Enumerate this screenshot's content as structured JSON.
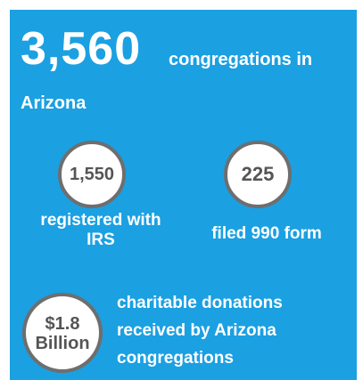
{
  "headline": {
    "number": "3,560",
    "text_line1": "congregations in",
    "text_line2": "Arizona"
  },
  "stats": [
    {
      "value": "1,550",
      "label_line1": "registered with",
      "label_line2": "IRS"
    },
    {
      "value": "225",
      "label_line1": "filed 990 form"
    }
  ],
  "donations": {
    "value_line1": "$1.8",
    "value_line2": "Billion",
    "text_line1": "charitable donations",
    "text_line2": "received by Arizona",
    "text_line3": "congregations"
  },
  "colors": {
    "background": "#1ba0e2",
    "circle_fill": "#ffffff",
    "circle_border": "#6e6e6e",
    "circle_text": "#555555",
    "text": "#ffffff"
  }
}
